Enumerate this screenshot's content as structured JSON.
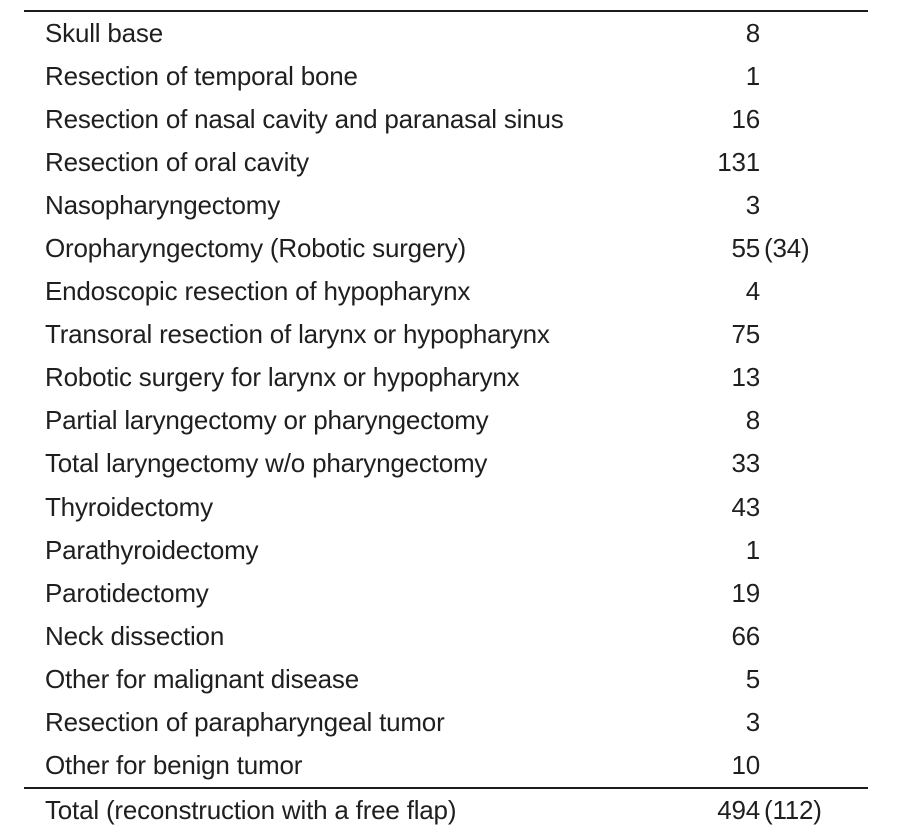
{
  "colors": {
    "background": "#ffffff",
    "text": "#1f1f1f",
    "rule": "#1c1c1c"
  },
  "table": {
    "rows": [
      {
        "label": "Skull base",
        "value": "8",
        "paren": ""
      },
      {
        "label": "Resection of temporal bone",
        "value": "1",
        "paren": ""
      },
      {
        "label": "Resection of nasal cavity and paranasal sinus",
        "value": "16",
        "paren": ""
      },
      {
        "label": "Resection of oral cavity",
        "value": "131",
        "paren": ""
      },
      {
        "label": "Nasopharyngectomy",
        "value": "3",
        "paren": ""
      },
      {
        "label": "Oropharyngectomy (Robotic surgery)",
        "value": "55",
        "paren": "(34)"
      },
      {
        "label": "Endoscopic resection of hypopharynx",
        "value": "4",
        "paren": ""
      },
      {
        "label": "Transoral resection of larynx or hypopharynx",
        "value": "75",
        "paren": ""
      },
      {
        "label": "Robotic surgery for larynx or hypopharynx",
        "value": "13",
        "paren": ""
      },
      {
        "label": "Partial laryngectomy or pharyngectomy",
        "value": "8",
        "paren": ""
      },
      {
        "label": "Total laryngectomy w/o pharyngectomy",
        "value": "33",
        "paren": ""
      },
      {
        "label": "Thyroidectomy",
        "value": "43",
        "paren": ""
      },
      {
        "label": "Parathyroidectomy",
        "value": "1",
        "paren": ""
      },
      {
        "label": "Parotidectomy",
        "value": "19",
        "paren": ""
      },
      {
        "label": "Neck dissection",
        "value": "66",
        "paren": ""
      },
      {
        "label": "Other for malignant disease",
        "value": "5",
        "paren": ""
      },
      {
        "label": "Resection of parapharyngeal tumor",
        "value": "3",
        "paren": ""
      },
      {
        "label": "Other for benign tumor",
        "value": "10",
        "paren": ""
      }
    ],
    "total": {
      "label": "Total (reconstruction with a free flap)",
      "value": "494",
      "paren": "(112)"
    }
  }
}
